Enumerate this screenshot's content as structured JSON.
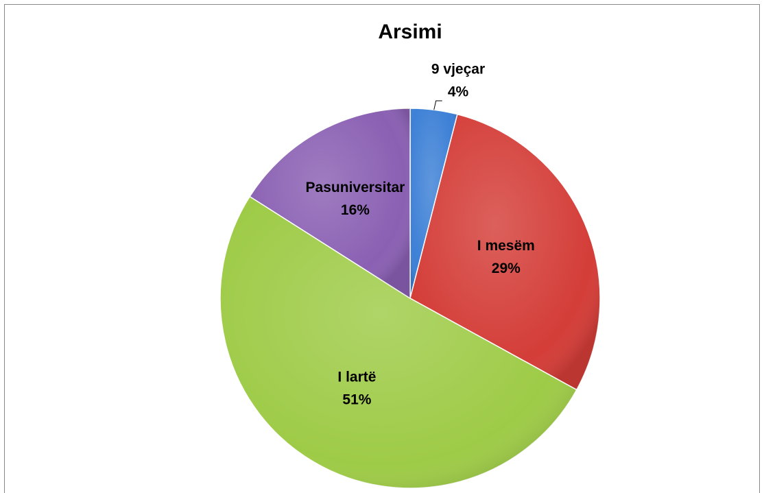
{
  "chart_data": {
    "type": "pie",
    "title": "Arsimi",
    "categories": [
      "9 vjeçar",
      "I mesëm",
      "I lartë",
      "Pasuniversitar"
    ],
    "values": [
      4,
      29,
      51,
      16
    ],
    "value_labels": [
      "4%",
      "29%",
      "51%",
      "16%"
    ],
    "colors": [
      "#3d80d6",
      "#d43d38",
      "#9ecb47",
      "#8a60b3"
    ]
  }
}
